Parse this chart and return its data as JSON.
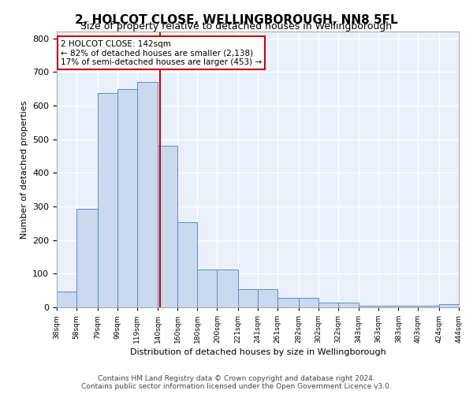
{
  "title": "2, HOLCOT CLOSE, WELLINGBOROUGH, NN8 5FL",
  "subtitle": "Size of property relative to detached houses in Wellingborough",
  "xlabel": "Distribution of detached houses by size in Wellingborough",
  "ylabel": "Number of detached properties",
  "bin_edges": [
    38,
    58,
    79,
    99,
    119,
    140,
    160,
    180,
    200,
    221,
    241,
    261,
    282,
    302,
    322,
    343,
    363,
    383,
    403,
    424,
    444
  ],
  "bar_heights": [
    48,
    293,
    638,
    650,
    670,
    480,
    252,
    113,
    113,
    53,
    53,
    28,
    28,
    14,
    14,
    5,
    5,
    5,
    5,
    9
  ],
  "bar_color": "#c9d9ef",
  "bar_edge_color": "#5b8ec4",
  "vline_x": 142,
  "vline_color": "#cc0000",
  "annotation_text": "2 HOLCOT CLOSE: 142sqm\n← 82% of detached houses are smaller (2,138)\n17% of semi-detached houses are larger (453) →",
  "annotation_box_color": "#ffffff",
  "annotation_box_edge_color": "#cc0000",
  "yticks": [
    0,
    100,
    200,
    300,
    400,
    500,
    600,
    700,
    800
  ],
  "ylim": [
    0,
    820
  ],
  "background_color": "#eaf0fb",
  "grid_color": "#ffffff",
  "footer": "Contains HM Land Registry data © Crown copyright and database right 2024.\nContains public sector information licensed under the Open Government Licence v3.0.",
  "tick_labels": [
    "38sqm",
    "58sqm",
    "79sqm",
    "99sqm",
    "119sqm",
    "140sqm",
    "160sqm",
    "180sqm",
    "200sqm",
    "221sqm",
    "241sqm",
    "261sqm",
    "282sqm",
    "302sqm",
    "322sqm",
    "343sqm",
    "363sqm",
    "383sqm",
    "403sqm",
    "424sqm",
    "444sqm"
  ]
}
